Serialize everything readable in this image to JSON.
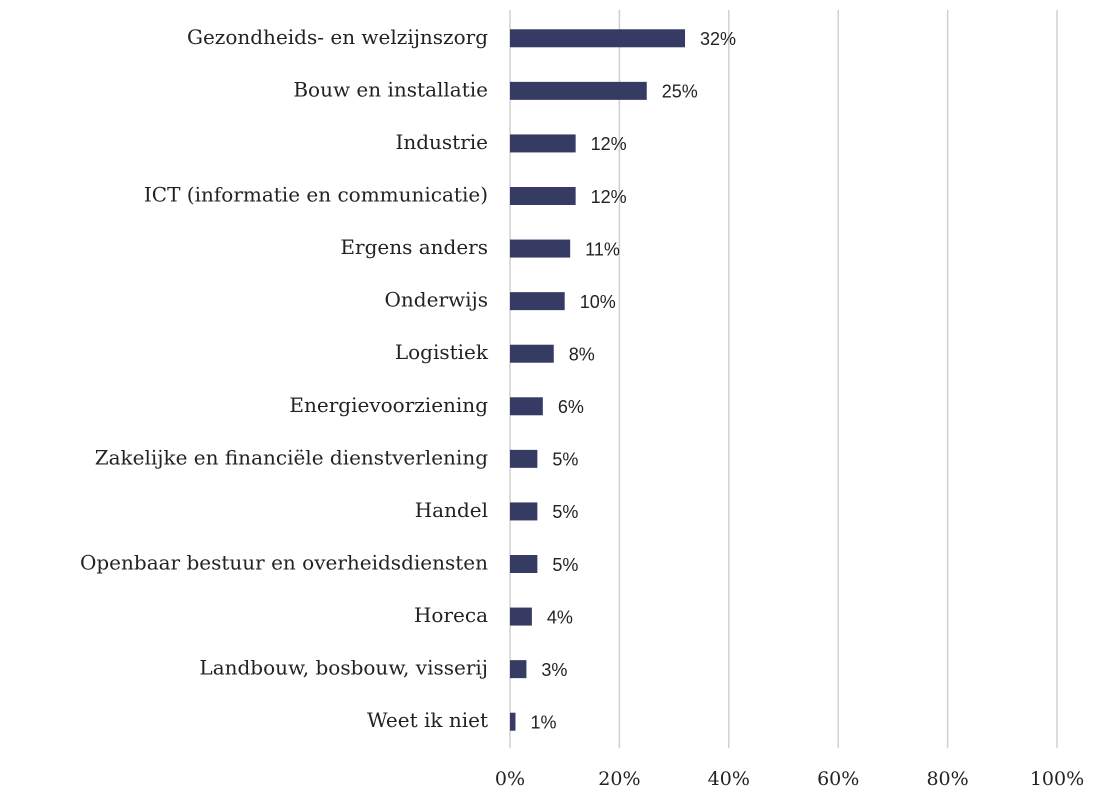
{
  "chart_data": {
    "type": "bar",
    "orientation": "horizontal",
    "categories": [
      "Gezondheids- en welzijnszorg",
      "Bouw en installatie",
      "Industrie",
      "ICT (informatie en communicatie)",
      "Ergens anders",
      "Onderwijs",
      "Logistiek",
      "Energievoorziening",
      "Zakelijke en financiële dienstverlening",
      "Handel",
      "Openbaar bestuur en overheidsdiensten",
      "Horeca",
      "Landbouw, bosbouw, visserij",
      "Weet ik niet"
    ],
    "values": [
      32,
      25,
      12,
      12,
      11,
      10,
      8,
      6,
      5,
      5,
      5,
      4,
      3,
      1
    ],
    "value_labels": [
      "32%",
      "25%",
      "12%",
      "12%",
      "11%",
      "10%",
      "8%",
      "6%",
      "5%",
      "5%",
      "5%",
      "4%",
      "3%",
      "1%"
    ],
    "color": "#363b63",
    "xlim": [
      0,
      100
    ],
    "xticks": [
      {
        "value": 0,
        "label": "0%"
      },
      {
        "value": 20,
        "label": "20%"
      },
      {
        "value": 40,
        "label": "40%"
      },
      {
        "value": 60,
        "label": "60%"
      },
      {
        "value": 80,
        "label": "80%"
      },
      {
        "value": 100,
        "label": "100%"
      }
    ],
    "grid": true
  }
}
